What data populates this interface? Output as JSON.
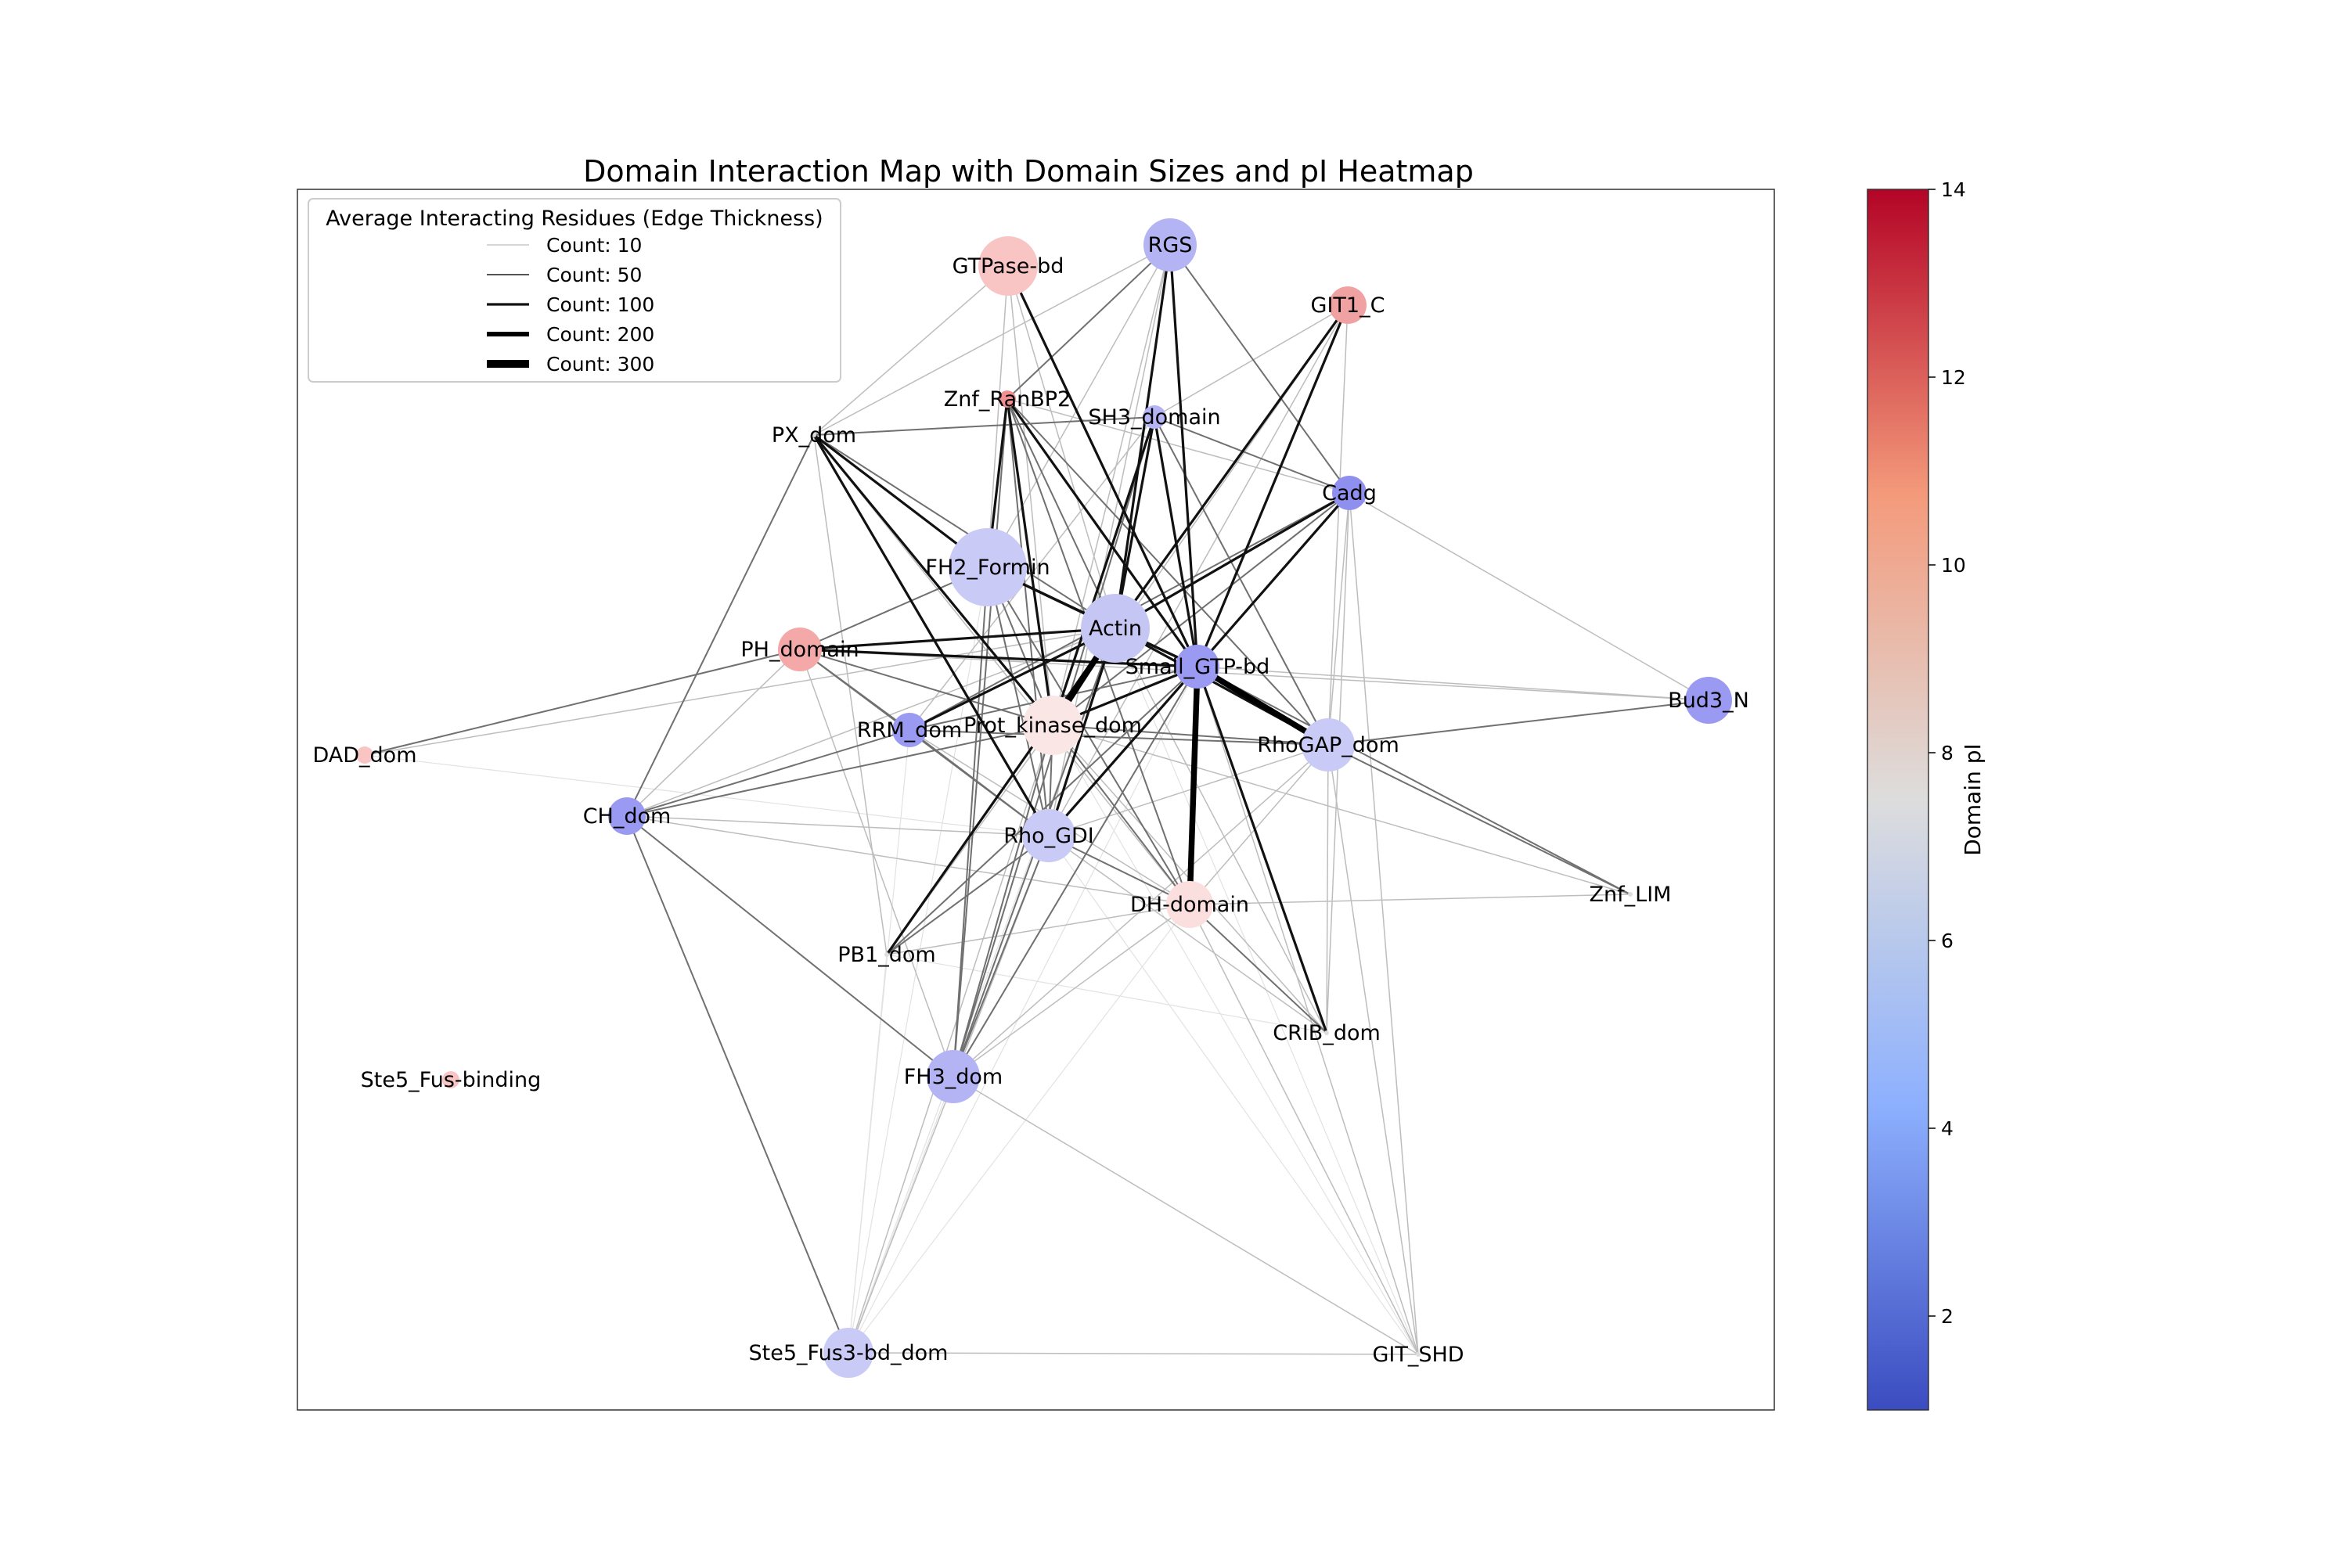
{
  "title": "Domain Interaction Map with Domain Sizes and pI Heatmap",
  "legend": {
    "title": "Average Interacting Residues (Edge Thickness)",
    "items": [
      {
        "label": "Count: 10",
        "count": 10
      },
      {
        "label": "Count: 50",
        "count": 50
      },
      {
        "label": "Count: 100",
        "count": 100
      },
      {
        "label": "Count: 200",
        "count": 200
      },
      {
        "label": "Count: 300",
        "count": 300
      }
    ]
  },
  "colorbar": {
    "label": "Domain pI",
    "min": 1,
    "max": 14,
    "ticks": [
      "2",
      "4",
      "6",
      "8",
      "10",
      "12",
      "14"
    ],
    "colors": [
      "#3b4cc0",
      "#8db0fe",
      "#dddddd",
      "#f49a7b",
      "#b40426"
    ]
  },
  "nodes": [
    {
      "id": "GTPase-bd",
      "label": "GTPase-bd"
    },
    {
      "id": "RGS",
      "label": "RGS"
    },
    {
      "id": "GIT1_C",
      "label": "GIT1_C"
    },
    {
      "id": "Znf_RanBP2",
      "label": "Znf_RanBP2"
    },
    {
      "id": "SH3_domain",
      "label": "SH3_domain"
    },
    {
      "id": "PX_dom",
      "label": "PX_dom"
    },
    {
      "id": "Cadg",
      "label": "Cadg"
    },
    {
      "id": "FH2_Formin",
      "label": "FH2_Formin"
    },
    {
      "id": "Actin",
      "label": "Actin"
    },
    {
      "id": "PH_domain",
      "label": "PH_domain"
    },
    {
      "id": "Small_GTP-bd",
      "label": "Small_GTP-bd"
    },
    {
      "id": "Bud3_N",
      "label": "Bud3_N"
    },
    {
      "id": "Prot_kinase_dom",
      "label": "Prot_kinase_dom"
    },
    {
      "id": "RRM_dom",
      "label": "RRM_dom"
    },
    {
      "id": "RhoGAP_dom",
      "label": "RhoGAP_dom"
    },
    {
      "id": "DAD_dom",
      "label": "DAD_dom"
    },
    {
      "id": "CH_dom",
      "label": "CH_dom"
    },
    {
      "id": "Rho_GDI",
      "label": "Rho_GDI"
    },
    {
      "id": "Znf_LIM",
      "label": "Znf_LIM"
    },
    {
      "id": "DH-domain",
      "label": "DH-domain"
    },
    {
      "id": "PB1_dom",
      "label": "PB1_dom"
    },
    {
      "id": "CRIB_dom",
      "label": "CRIB_dom"
    },
    {
      "id": "FH3_dom",
      "label": "FH3_dom"
    },
    {
      "id": "Ste5_Fus-binding",
      "label": "Ste5_Fus-binding"
    },
    {
      "id": "Ste5_Fus3-bd_dom",
      "label": "Ste5_Fus3-bd_dom"
    },
    {
      "id": "GIT_SHD",
      "label": "GIT_SHD"
    }
  ]
}
